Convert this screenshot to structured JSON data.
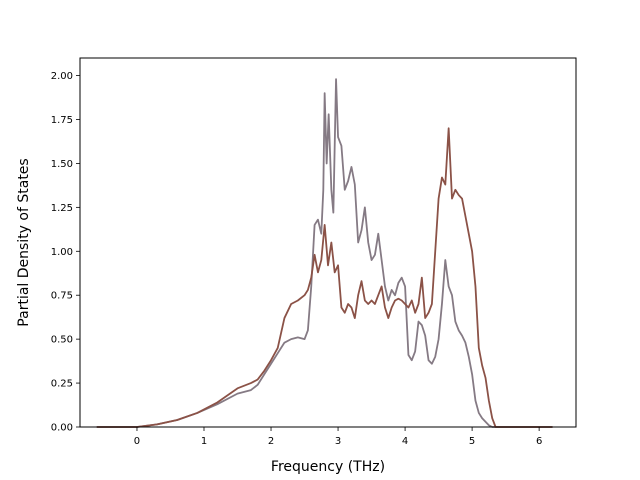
{
  "chart_data": {
    "type": "line",
    "title": "",
    "xlabel": "Frequency (THz)",
    "ylabel": "Partial Density of States",
    "xlim": [
      -0.85,
      6.55
    ],
    "ylim": [
      0.0,
      2.1
    ],
    "xticks": [
      0,
      1,
      2,
      3,
      4,
      5,
      6
    ],
    "yticks": [
      0.0,
      0.25,
      0.5,
      0.75,
      1.0,
      1.25,
      1.5,
      1.75,
      2.0
    ],
    "xtick_labels": [
      "0",
      "1",
      "2",
      "3",
      "4",
      "5",
      "6"
    ],
    "ytick_labels": [
      "0.00",
      "0.25",
      "0.50",
      "0.75",
      "1.00",
      "1.25",
      "1.50",
      "1.75",
      "2.00"
    ],
    "grid": false,
    "legend": false,
    "series": [
      {
        "color": "#857a84",
        "x": [
          -0.6,
          0.0,
          0.3,
          0.6,
          0.9,
          1.2,
          1.5,
          1.7,
          1.8,
          1.9,
          2.0,
          2.1,
          2.2,
          2.3,
          2.4,
          2.5,
          2.55,
          2.6,
          2.65,
          2.7,
          2.75,
          2.78,
          2.8,
          2.83,
          2.86,
          2.9,
          2.93,
          2.97,
          3.0,
          3.05,
          3.1,
          3.15,
          3.2,
          3.25,
          3.3,
          3.35,
          3.4,
          3.45,
          3.5,
          3.55,
          3.6,
          3.65,
          3.7,
          3.75,
          3.8,
          3.85,
          3.9,
          3.95,
          4.0,
          4.05,
          4.1,
          4.15,
          4.2,
          4.25,
          4.3,
          4.35,
          4.4,
          4.45,
          4.5,
          4.55,
          4.6,
          4.65,
          4.7,
          4.75,
          4.8,
          4.85,
          4.9,
          4.95,
          5.0,
          5.05,
          5.1,
          5.15,
          5.2,
          5.25,
          5.3,
          5.35,
          5.4,
          5.45,
          5.5,
          5.55,
          5.6,
          5.65,
          5.7,
          6.0,
          6.2
        ],
        "y": [
          0.0,
          0.0,
          0.015,
          0.04,
          0.08,
          0.13,
          0.19,
          0.21,
          0.24,
          0.3,
          0.36,
          0.42,
          0.48,
          0.5,
          0.51,
          0.5,
          0.55,
          0.8,
          1.15,
          1.18,
          1.1,
          1.35,
          1.9,
          1.5,
          1.78,
          1.35,
          1.22,
          1.98,
          1.65,
          1.6,
          1.35,
          1.4,
          1.48,
          1.38,
          1.05,
          1.12,
          1.25,
          1.05,
          0.95,
          0.98,
          1.1,
          0.95,
          0.8,
          0.72,
          0.78,
          0.75,
          0.82,
          0.85,
          0.8,
          0.41,
          0.38,
          0.43,
          0.6,
          0.58,
          0.52,
          0.38,
          0.36,
          0.4,
          0.5,
          0.7,
          0.95,
          0.8,
          0.75,
          0.6,
          0.55,
          0.52,
          0.48,
          0.4,
          0.3,
          0.15,
          0.08,
          0.05,
          0.03,
          0.01,
          0.0,
          0.0,
          0.0,
          0.0,
          0.0,
          0.0,
          0.0,
          0.0,
          0.0,
          0.0,
          0.0
        ]
      },
      {
        "color": "#8b5247",
        "x": [
          -0.6,
          0.0,
          0.3,
          0.6,
          0.9,
          1.2,
          1.5,
          1.7,
          1.8,
          1.9,
          2.0,
          2.1,
          2.2,
          2.3,
          2.4,
          2.5,
          2.55,
          2.6,
          2.65,
          2.7,
          2.75,
          2.8,
          2.85,
          2.9,
          2.95,
          3.0,
          3.05,
          3.1,
          3.15,
          3.2,
          3.25,
          3.3,
          3.35,
          3.4,
          3.45,
          3.5,
          3.55,
          3.6,
          3.65,
          3.7,
          3.75,
          3.8,
          3.85,
          3.9,
          3.95,
          4.0,
          4.05,
          4.1,
          4.15,
          4.2,
          4.25,
          4.3,
          4.35,
          4.4,
          4.45,
          4.5,
          4.55,
          4.6,
          4.65,
          4.7,
          4.75,
          4.8,
          4.85,
          4.9,
          4.95,
          5.0,
          5.05,
          5.1,
          5.15,
          5.2,
          5.25,
          5.3,
          5.35,
          5.4,
          5.45,
          5.5,
          5.55,
          5.6,
          5.65,
          5.7,
          6.2
        ],
        "y": [
          0.0,
          0.0,
          0.015,
          0.04,
          0.08,
          0.14,
          0.22,
          0.25,
          0.27,
          0.32,
          0.38,
          0.45,
          0.62,
          0.7,
          0.72,
          0.75,
          0.78,
          0.85,
          0.98,
          0.88,
          0.95,
          1.15,
          0.92,
          1.05,
          0.88,
          0.92,
          0.68,
          0.65,
          0.7,
          0.68,
          0.62,
          0.75,
          0.83,
          0.72,
          0.7,
          0.72,
          0.7,
          0.75,
          0.8,
          0.68,
          0.62,
          0.68,
          0.72,
          0.73,
          0.72,
          0.7,
          0.68,
          0.72,
          0.65,
          0.7,
          0.85,
          0.62,
          0.65,
          0.7,
          1.0,
          1.3,
          1.42,
          1.38,
          1.7,
          1.3,
          1.35,
          1.32,
          1.3,
          1.2,
          1.1,
          1.0,
          0.8,
          0.45,
          0.35,
          0.28,
          0.15,
          0.05,
          0.0,
          0.0,
          0.0,
          0.0,
          0.0,
          0.0,
          0.0,
          0.0,
          0.0
        ]
      }
    ]
  }
}
